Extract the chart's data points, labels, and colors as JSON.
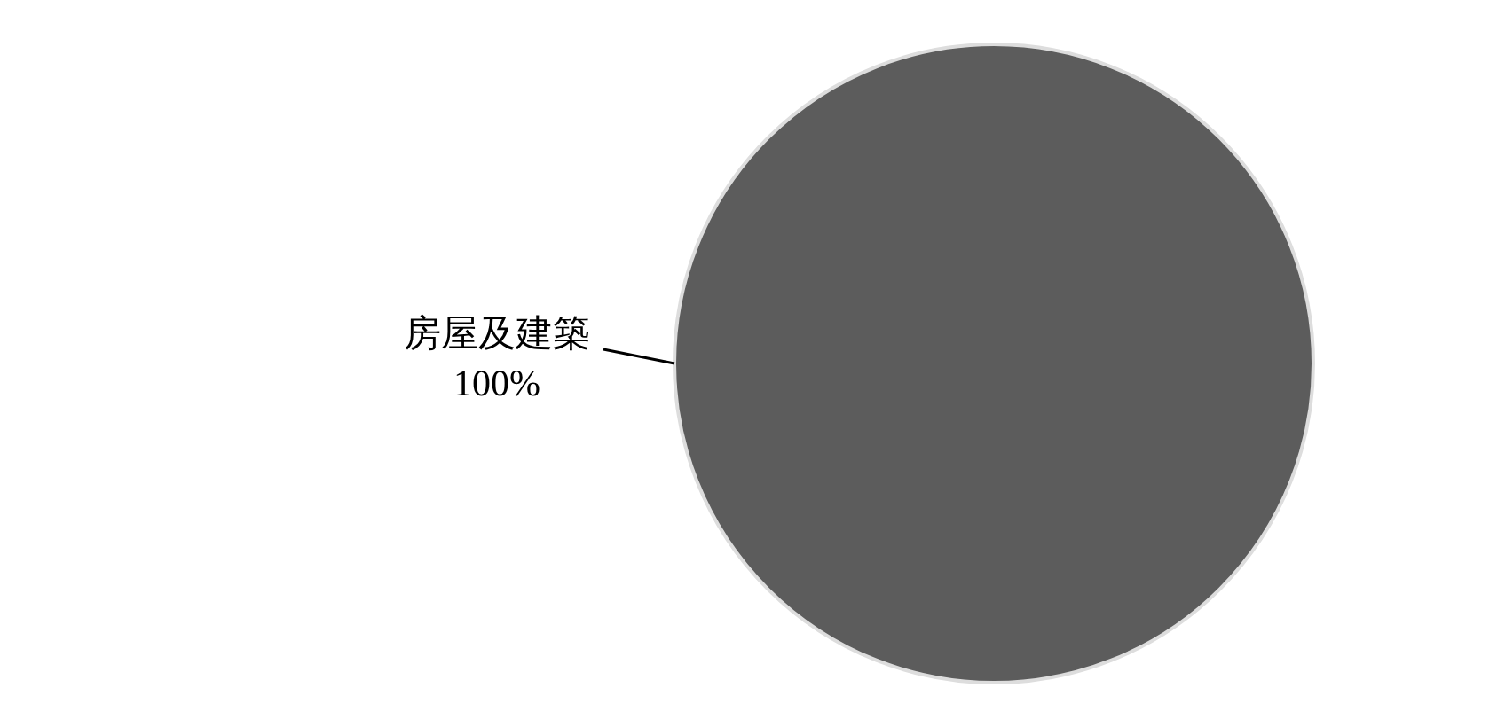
{
  "chart_data": {
    "type": "pie",
    "categories": [
      "房屋及建築"
    ],
    "values": [
      100
    ],
    "colors": [
      "#5c5c5c"
    ],
    "value_labels": [
      "100%"
    ]
  }
}
